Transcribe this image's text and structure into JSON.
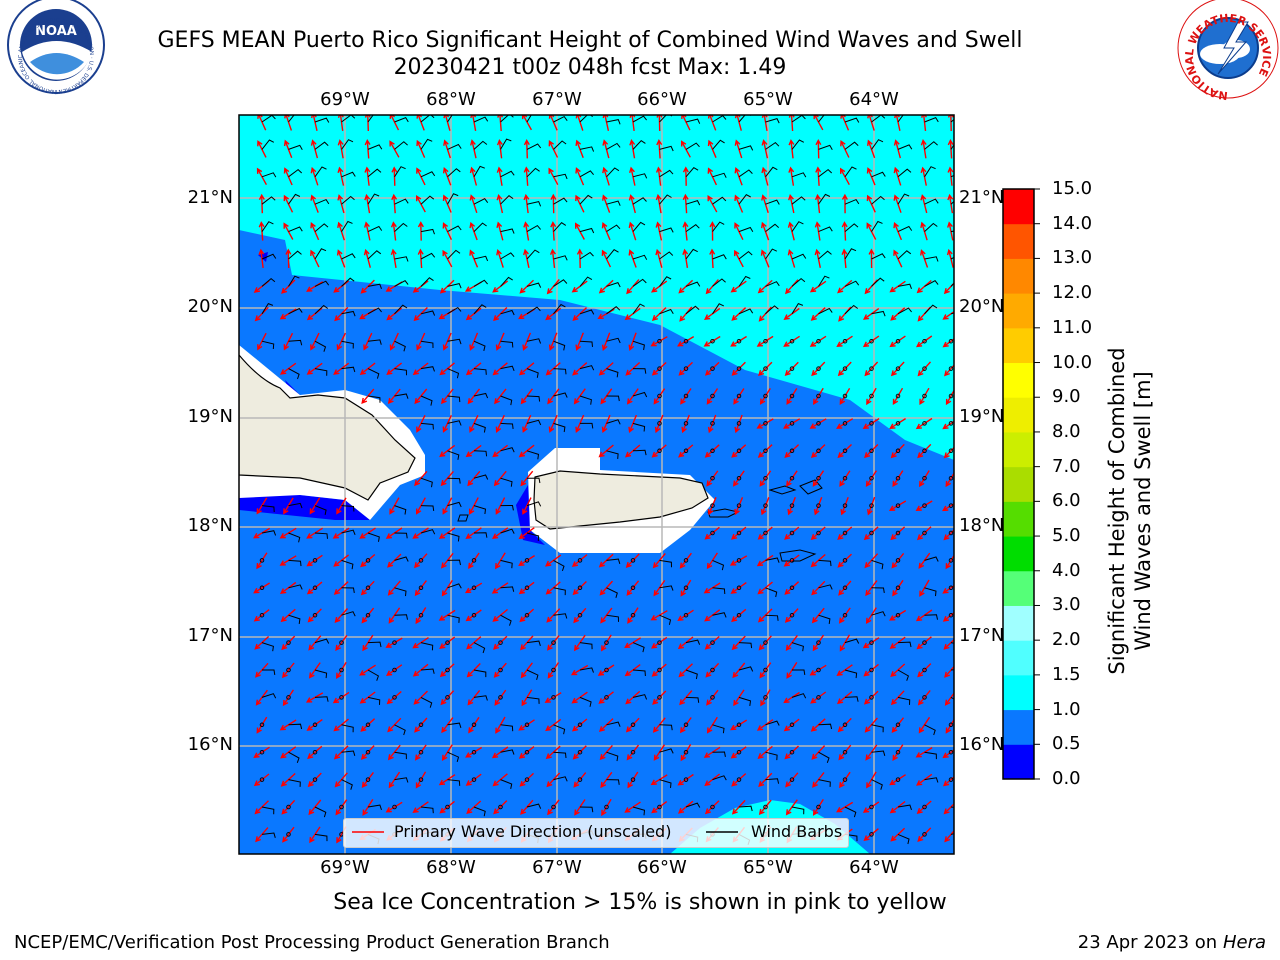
{
  "header": {
    "title_line1": "GEFS MEAN Puerto Rico Significant Height of Combined Wind Waves and Swell",
    "title_line2": "20230421 t00z 048h fcst   Max: 1.49"
  },
  "logos": {
    "left": {
      "icon": "noaa-logo-icon",
      "text": "NOAA",
      "ring_text": "NATIONAL OCEANIC AND ATMOSPHERIC ADMINISTRATION · U.S. DEPARTMENT OF COMMERCE"
    },
    "right": {
      "icon": "nws-logo-icon",
      "ring_text": "NATIONAL WEATHER SERVICE"
    }
  },
  "map": {
    "lon_ticks": [
      "69°W",
      "68°W",
      "67°W",
      "66°W",
      "65°W",
      "64°W"
    ],
    "lat_ticks": [
      "21°N",
      "20°N",
      "19°N",
      "18°N",
      "17°N",
      "16°N"
    ],
    "legend": {
      "wave_label": "Primary Wave Direction (unscaled)",
      "barb_label": "Wind Barbs",
      "wave_color": "#ff0000",
      "barb_color": "#000000"
    }
  },
  "colorbar": {
    "title_line1": "Significant Height of Combined",
    "title_line2": "Wind Waves and Swell [m]",
    "levels": [
      "0.0",
      "0.5",
      "1.0",
      "1.5",
      "2.0",
      "3.0",
      "4.0",
      "5.0",
      "6.0",
      "7.0",
      "8.0",
      "9.0",
      "10.0",
      "11.0",
      "12.0",
      "13.0",
      "14.0",
      "15.0"
    ],
    "colors": [
      "#0000ff",
      "#0a78ff",
      "#00ffff",
      "#50ffff",
      "#a0ffff",
      "#55ff78",
      "#00dd00",
      "#55dd00",
      "#aadd00",
      "#ccee00",
      "#eeee00",
      "#ffff00",
      "#ffcc00",
      "#ffaa00",
      "#ff8800",
      "#ff5500",
      "#ff0000"
    ]
  },
  "map_colors": {
    "band_0_5_1_0": "#0a78ff",
    "band_1_0_1_5": "#00ffff",
    "band_0_0_0_5": "#0000ff",
    "land": "#eeecdf",
    "nodata": "#ffffff"
  },
  "footer": {
    "caption": "Sea Ice Concentration > 15% is shown in pink to yellow",
    "left": "NCEP/EMC/Verification Post Processing Product Generation Branch",
    "right_prefix": "23 Apr 2023 on ",
    "right_host": "Hera"
  }
}
